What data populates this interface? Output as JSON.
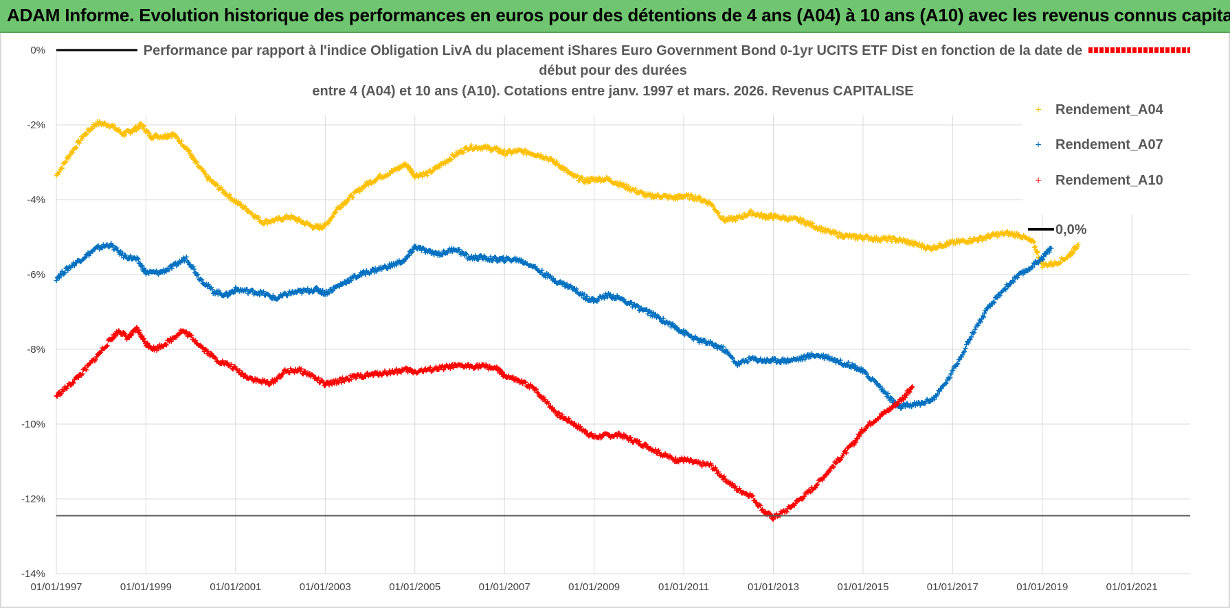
{
  "header": {
    "title": "ADAM Informe. Evolution historique des performances en euros pour des détentions de 4 ans (A04) à 10 ans (A10) avec les revenus connus capitalisés"
  },
  "colors": {
    "header_bg": "#70c670",
    "A04": "#ffc000",
    "A07": "#0070c0",
    "A10": "#ff0000",
    "zero": "#000000",
    "grid": "#d9d9d9"
  },
  "chart_data": {
    "type": "scatter",
    "title_lines": [
      "Performance par rapport à l'indice Obligation LivA  du placement iShares Euro Government Bond 0-1yr UCITS ETF Dist en fonction de la date de",
      "début pour des durées",
      "entre 4 (A04) et 10 ans (A10). Cotations entre janv. 1997 et mars. 2026. Revenus CAPITALISE"
    ],
    "ylim": [
      -14,
      0
    ],
    "xlim": [
      1997.0,
      2022.3
    ],
    "y_ticks": [
      {
        "value": 0,
        "label": "0%"
      },
      {
        "value": -2,
        "label": "-2%"
      },
      {
        "value": -4,
        "label": "-4%"
      },
      {
        "value": -6,
        "label": "-6%"
      },
      {
        "value": -8,
        "label": "-8%"
      },
      {
        "value": -10,
        "label": "-10%"
      },
      {
        "value": -12,
        "label": "-12%"
      },
      {
        "value": -14,
        "label": "-14%"
      }
    ],
    "x_ticks": [
      {
        "value": 1997.0,
        "label": "01/01/1997"
      },
      {
        "value": 1999.0,
        "label": "01/01/1999"
      },
      {
        "value": 2001.0,
        "label": "01/01/2001"
      },
      {
        "value": 2003.0,
        "label": "01/01/2003"
      },
      {
        "value": 2005.0,
        "label": "01/01/2005"
      },
      {
        "value": 2007.0,
        "label": "01/01/2007"
      },
      {
        "value": 2009.0,
        "label": "01/01/2009"
      },
      {
        "value": 2011.0,
        "label": "01/01/2011"
      },
      {
        "value": 2013.0,
        "label": "01/01/2013"
      },
      {
        "value": 2015.0,
        "label": "01/01/2015"
      },
      {
        "value": 2017.0,
        "label": "01/01/2017"
      },
      {
        "value": 2019.0,
        "label": "01/01/2019"
      },
      {
        "value": 2021.0,
        "label": "01/01/2021"
      }
    ],
    "reference_line": {
      "name": "0,0%",
      "y": -12.45
    },
    "legend_position": "right",
    "series": [
      {
        "name": "Rendement_A04",
        "color": "#ffc000",
        "x": [
          1997.0,
          1997.3,
          1997.6,
          1997.9,
          1998.2,
          1998.5,
          1998.7,
          1998.9,
          1999.1,
          1999.4,
          1999.6,
          1999.9,
          2000.1,
          2000.4,
          2000.7,
          2001.0,
          2001.3,
          2001.6,
          2001.9,
          2002.2,
          2002.5,
          2002.8,
          2003.0,
          2003.3,
          2003.6,
          2003.9,
          2004.2,
          2004.5,
          2004.8,
          2005.0,
          2005.3,
          2005.6,
          2005.9,
          2006.2,
          2006.5,
          2006.8,
          2007.0,
          2007.3,
          2007.6,
          2007.9,
          2008.2,
          2008.5,
          2008.8,
          2009.0,
          2009.3,
          2009.6,
          2009.9,
          2010.2,
          2010.5,
          2010.8,
          2011.0,
          2011.3,
          2011.6,
          2011.9,
          2012.2,
          2012.5,
          2012.8,
          2013.0,
          2013.3,
          2013.6,
          2013.9,
          2014.2,
          2014.5,
          2014.8,
          2015.0,
          2015.3,
          2015.6,
          2015.9,
          2016.2,
          2016.5,
          2016.8,
          2017.0,
          2017.3,
          2017.6,
          2017.9,
          2018.2,
          2018.5,
          2018.8,
          2019.0,
          2019.3,
          2019.6,
          2019.8
        ],
        "values": [
          -3.35,
          -2.8,
          -2.3,
          -1.95,
          -2.0,
          -2.25,
          -2.15,
          -2.0,
          -2.3,
          -2.3,
          -2.25,
          -2.6,
          -3.0,
          -3.45,
          -3.75,
          -4.05,
          -4.3,
          -4.6,
          -4.55,
          -4.45,
          -4.6,
          -4.75,
          -4.7,
          -4.2,
          -3.9,
          -3.6,
          -3.4,
          -3.25,
          -3.05,
          -3.35,
          -3.3,
          -3.05,
          -2.8,
          -2.6,
          -2.6,
          -2.65,
          -2.75,
          -2.7,
          -2.75,
          -2.85,
          -3.05,
          -3.35,
          -3.5,
          -3.45,
          -3.45,
          -3.6,
          -3.75,
          -3.9,
          -3.9,
          -3.95,
          -3.9,
          -3.95,
          -4.1,
          -4.55,
          -4.5,
          -4.35,
          -4.45,
          -4.45,
          -4.5,
          -4.55,
          -4.7,
          -4.85,
          -4.95,
          -5.0,
          -5.0,
          -5.05,
          -5.05,
          -5.1,
          -5.2,
          -5.3,
          -5.2,
          -5.15,
          -5.1,
          -5.05,
          -4.95,
          -4.9,
          -4.95,
          -5.15,
          -5.75,
          -5.7,
          -5.5,
          -5.2
        ]
      },
      {
        "name": "Rendement_A07",
        "color": "#0070c0",
        "x": [
          1997.0,
          1997.3,
          1997.6,
          1997.9,
          1998.2,
          1998.5,
          1998.8,
          1999.0,
          1999.3,
          1999.6,
          1999.9,
          2000.2,
          2000.5,
          2000.8,
          2001.0,
          2001.3,
          2001.6,
          2001.9,
          2002.2,
          2002.5,
          2002.8,
          2003.0,
          2003.3,
          2003.6,
          2003.9,
          2004.2,
          2004.5,
          2004.8,
          2005.0,
          2005.3,
          2005.6,
          2005.9,
          2006.2,
          2006.5,
          2006.8,
          2007.0,
          2007.3,
          2007.6,
          2007.9,
          2008.2,
          2008.5,
          2008.8,
          2009.0,
          2009.3,
          2009.6,
          2009.9,
          2010.2,
          2010.5,
          2010.8,
          2011.0,
          2011.3,
          2011.6,
          2011.9,
          2012.2,
          2012.5,
          2012.8,
          2013.0,
          2013.3,
          2013.6,
          2013.9,
          2014.2,
          2014.5,
          2014.8,
          2015.0,
          2015.3,
          2015.6,
          2015.8,
          2016.0,
          2016.3,
          2016.6,
          2016.9,
          2017.2,
          2017.5,
          2017.8,
          2018.1,
          2018.4,
          2018.7,
          2019.0,
          2019.2
        ],
        "values": [
          -6.1,
          -5.8,
          -5.55,
          -5.3,
          -5.2,
          -5.5,
          -5.6,
          -5.95,
          -5.95,
          -5.8,
          -5.55,
          -6.1,
          -6.45,
          -6.55,
          -6.4,
          -6.45,
          -6.5,
          -6.65,
          -6.5,
          -6.45,
          -6.4,
          -6.5,
          -6.3,
          -6.1,
          -5.95,
          -5.85,
          -5.75,
          -5.6,
          -5.25,
          -5.4,
          -5.45,
          -5.3,
          -5.55,
          -5.55,
          -5.6,
          -5.6,
          -5.6,
          -5.75,
          -6.0,
          -6.2,
          -6.35,
          -6.6,
          -6.7,
          -6.55,
          -6.65,
          -6.85,
          -7.0,
          -7.2,
          -7.4,
          -7.55,
          -7.75,
          -7.85,
          -8.0,
          -8.4,
          -8.25,
          -8.3,
          -8.3,
          -8.3,
          -8.25,
          -8.15,
          -8.2,
          -8.35,
          -8.45,
          -8.6,
          -8.9,
          -9.3,
          -9.55,
          -9.5,
          -9.45,
          -9.3,
          -8.8,
          -8.15,
          -7.45,
          -6.9,
          -6.45,
          -6.1,
          -5.85,
          -5.55,
          -5.3
        ]
      },
      {
        "name": "Rendement_A10",
        "color": "#ff0000",
        "x": [
          1997.0,
          1997.3,
          1997.6,
          1997.9,
          1998.2,
          1998.4,
          1998.6,
          1998.8,
          1999.0,
          1999.2,
          1999.5,
          1999.8,
          2000.0,
          2000.3,
          2000.6,
          2000.9,
          2001.2,
          2001.5,
          2001.8,
          2002.1,
          2002.4,
          2002.7,
          2003.0,
          2003.3,
          2003.6,
          2003.9,
          2004.2,
          2004.5,
          2004.8,
          2005.0,
          2005.3,
          2005.6,
          2005.9,
          2006.2,
          2006.5,
          2006.8,
          2007.0,
          2007.3,
          2007.6,
          2007.9,
          2008.2,
          2008.5,
          2008.8,
          2009.0,
          2009.3,
          2009.6,
          2009.9,
          2010.2,
          2010.5,
          2010.8,
          2011.0,
          2011.3,
          2011.6,
          2011.9,
          2012.2,
          2012.5,
          2012.8,
          2013.0,
          2013.3,
          2013.6,
          2013.9,
          2014.2,
          2014.5,
          2014.8,
          2015.0,
          2015.3,
          2015.6,
          2015.9,
          2016.1
        ],
        "values": [
          -9.25,
          -8.95,
          -8.6,
          -8.2,
          -7.75,
          -7.5,
          -7.7,
          -7.45,
          -7.85,
          -8.0,
          -7.8,
          -7.5,
          -7.65,
          -8.0,
          -8.3,
          -8.45,
          -8.7,
          -8.85,
          -8.9,
          -8.6,
          -8.55,
          -8.7,
          -8.95,
          -8.85,
          -8.75,
          -8.7,
          -8.65,
          -8.6,
          -8.55,
          -8.6,
          -8.55,
          -8.5,
          -8.45,
          -8.45,
          -8.45,
          -8.5,
          -8.7,
          -8.85,
          -9.0,
          -9.35,
          -9.75,
          -9.95,
          -10.2,
          -10.35,
          -10.3,
          -10.3,
          -10.45,
          -10.6,
          -10.8,
          -10.95,
          -10.95,
          -11.05,
          -11.1,
          -11.45,
          -11.75,
          -11.9,
          -12.35,
          -12.5,
          -12.3,
          -12.0,
          -11.7,
          -11.3,
          -10.9,
          -10.5,
          -10.15,
          -9.85,
          -9.6,
          -9.3,
          -9.0
        ]
      }
    ]
  }
}
